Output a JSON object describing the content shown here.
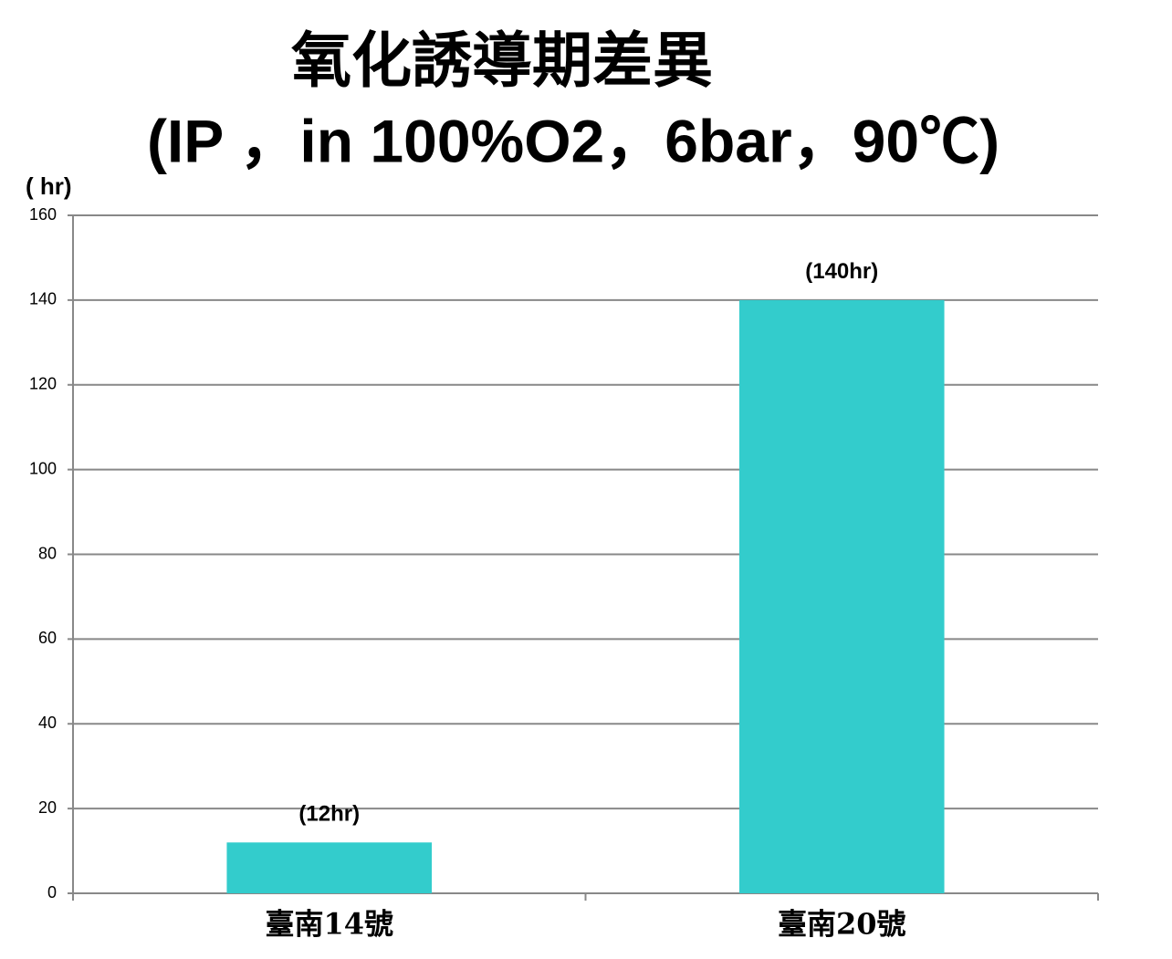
{
  "chart_data": {
    "type": "bar",
    "title": "氧化誘導期差異",
    "subtitle": "(IP ，in 100%O2，6bar，90℃)",
    "y_label": "( hr)",
    "categories": [
      "臺南14號",
      "臺南20號"
    ],
    "values": [
      12,
      140
    ],
    "value_labels": [
      "(12hr)",
      "(140hr)"
    ],
    "color": "#33cccc",
    "ylim": [
      0,
      160
    ],
    "yticks": [
      0,
      20,
      40,
      60,
      80,
      100,
      120,
      140,
      160
    ],
    "grid": true
  }
}
